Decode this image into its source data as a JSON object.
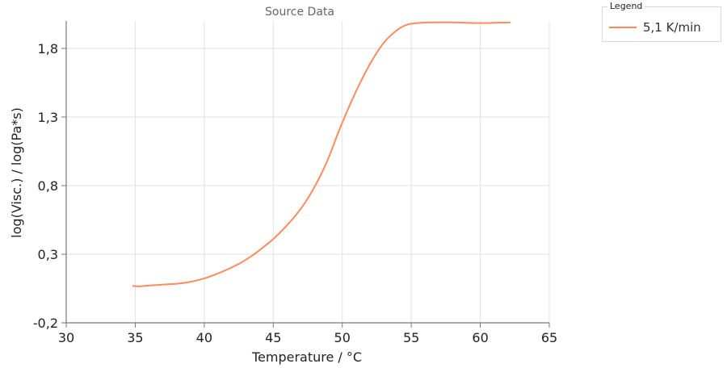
{
  "colors": {
    "series": "#ff8a5b",
    "grid": "#e2e2e2",
    "axis": "#777777"
  },
  "legend": {
    "title": "Legend"
  },
  "chart_data": {
    "type": "line",
    "title": "Source Data",
    "xlabel": "Temperature / °C",
    "ylabel": "log(Visc.) / log(Pa*s)",
    "xlim": [
      30,
      65
    ],
    "ylim": [
      -0.2,
      2.0
    ],
    "xticks": [
      30,
      35,
      40,
      45,
      50,
      55,
      60,
      65
    ],
    "xtick_labels": [
      "30",
      "35",
      "40",
      "45",
      "50",
      "55",
      "60",
      "65"
    ],
    "yticks": [
      -0.2,
      0.3,
      0.8,
      1.3,
      1.8
    ],
    "ytick_labels": [
      "-0,2",
      "0,3",
      "0,8",
      "1,3",
      "1,8"
    ],
    "grid": true,
    "legend_position": "top-right",
    "series": [
      {
        "name": "5,1 K/min",
        "x": [
          34.8,
          35.2,
          35.8,
          36.5,
          37.2,
          38.0,
          38.8,
          39.5,
          40.2,
          41.0,
          41.8,
          42.6,
          43.4,
          44.2,
          45.0,
          45.8,
          46.6,
          47.4,
          48.2,
          49.0,
          49.8,
          50.6,
          51.4,
          52.2,
          53.0,
          53.8,
          54.6,
          55.4,
          56.5,
          58.0,
          60.0,
          62.2
        ],
        "y": [
          0.07,
          0.065,
          0.07,
          0.075,
          0.08,
          0.085,
          0.095,
          0.11,
          0.13,
          0.16,
          0.195,
          0.235,
          0.285,
          0.345,
          0.41,
          0.49,
          0.58,
          0.69,
          0.83,
          1.0,
          1.21,
          1.4,
          1.57,
          1.72,
          1.84,
          1.92,
          1.97,
          1.985,
          1.99,
          1.99,
          1.985,
          1.99
        ]
      }
    ]
  }
}
